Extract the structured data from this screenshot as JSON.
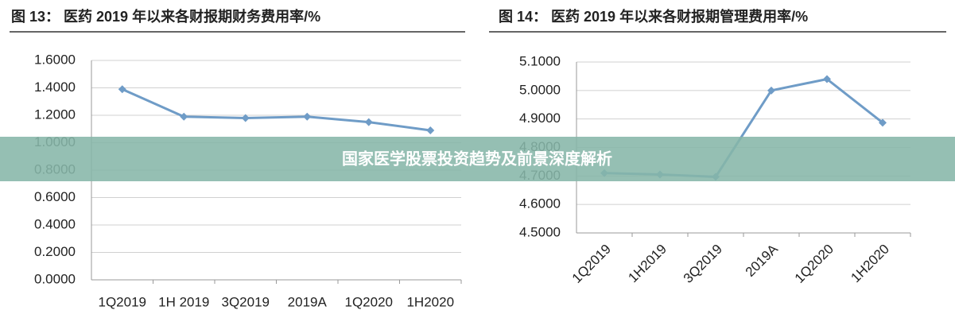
{
  "chart_data": [
    {
      "type": "line",
      "title": "图 13： 医药 2019 年以来各财报期财务费用率/%",
      "categories": [
        "1Q2019",
        "1H 2019",
        "3Q2019",
        "2019A",
        "1Q2020",
        "1H2020"
      ],
      "series": [
        {
          "color": "#6f9cc7",
          "values": [
            1.39,
            1.19,
            1.18,
            1.19,
            1.15,
            1.09
          ]
        }
      ],
      "ylim": [
        0,
        1.6
      ],
      "yticks": [
        {
          "value": 0,
          "label": "0.0000"
        },
        {
          "value": 0.2,
          "label": "0.2000"
        },
        {
          "value": 0.4,
          "label": "0.4000"
        },
        {
          "value": 0.6,
          "label": "0.6000"
        },
        {
          "value": 0.8,
          "label": "0.8000"
        },
        {
          "value": 1,
          "label": "1.0000"
        },
        {
          "value": 1.2,
          "label": "1.2000"
        },
        {
          "value": 1.4,
          "label": "1.4000"
        },
        {
          "value": 1.6,
          "label": "1.6000"
        }
      ],
      "grid": true
    },
    {
      "type": "line",
      "title": "图 14： 医药 2019 年以来各财报期管理费用率/%",
      "categories": [
        "1Q2019",
        "1H2019",
        "3Q2019",
        "2019A",
        "1Q2020",
        "1H2020"
      ],
      "series": [
        {
          "color": "#6f9cc7",
          "values": [
            4.71,
            4.705,
            4.697,
            5.0,
            5.04,
            4.887
          ]
        }
      ],
      "ylim": [
        4.5,
        5.1
      ],
      "yticks": [
        {
          "value": 4.5,
          "label": "4.5000"
        },
        {
          "value": 4.6,
          "label": "4.6000"
        },
        {
          "value": 4.7,
          "label": "4.7000"
        },
        {
          "value": 4.8,
          "label": "4.8000"
        },
        {
          "value": 4.9,
          "label": "4.9000"
        },
        {
          "value": 5.0,
          "label": "5.0000"
        },
        {
          "value": 5.1,
          "label": "5.1000"
        }
      ],
      "grid": true
    }
  ],
  "banner": "国家医学股票投资趋势及前景深度解析"
}
